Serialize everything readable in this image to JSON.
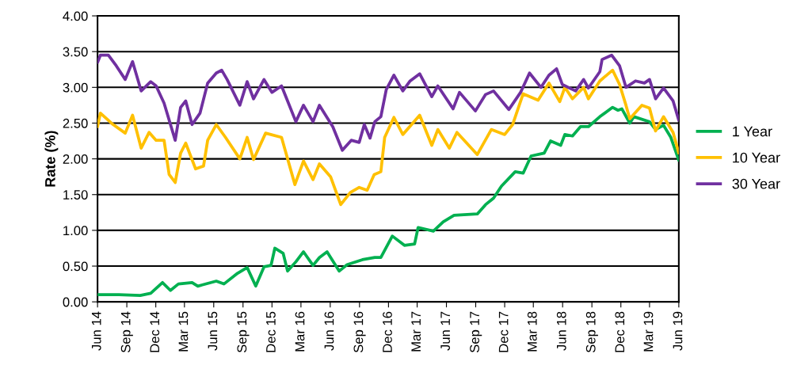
{
  "chart_data": {
    "type": "line",
    "ylabel": "Rate (%)",
    "xlim": [
      "2014-06-01",
      "2019-06-01"
    ],
    "xticks": [
      {
        "value": "2014-06",
        "label": "Jun 14"
      },
      {
        "value": "2014-09",
        "label": "Sep 14"
      },
      {
        "value": "2014-12",
        "label": "Dec 14"
      },
      {
        "value": "2015-03",
        "label": "Mar 15"
      },
      {
        "value": "2015-06",
        "label": "Jun 15"
      },
      {
        "value": "2015-09",
        "label": "Sep 15"
      },
      {
        "value": "2015-12",
        "label": "Dec 15"
      },
      {
        "value": "2016-03",
        "label": "Mar 16"
      },
      {
        "value": "2016-06",
        "label": "Jun 16"
      },
      {
        "value": "2016-09",
        "label": "Sep 16"
      },
      {
        "value": "2016-12",
        "label": "Dec 16"
      },
      {
        "value": "2017-03",
        "label": "Mar 17"
      },
      {
        "value": "2017-06",
        "label": "Jun 17"
      },
      {
        "value": "2017-09",
        "label": "Sep 17"
      },
      {
        "value": "2017-12",
        "label": "Dec 17"
      },
      {
        "value": "2018-03",
        "label": "Mar 18"
      },
      {
        "value": "2018-06",
        "label": "Jun 18"
      },
      {
        "value": "2018-09",
        "label": "Sep 18"
      },
      {
        "value": "2018-12",
        "label": "Dec 18"
      },
      {
        "value": "2019-03",
        "label": "Mar 19"
      },
      {
        "value": "2019-06",
        "label": "Jun 19"
      }
    ],
    "ylim": [
      0,
      4
    ],
    "yticks": [
      {
        "value": 0,
        "label": "0.00"
      },
      {
        "value": 0.5,
        "label": "0.50"
      },
      {
        "value": 1,
        "label": "1.00"
      },
      {
        "value": 1.5,
        "label": "1.50"
      },
      {
        "value": 2,
        "label": "2.00"
      },
      {
        "value": 2.5,
        "label": "2.50"
      },
      {
        "value": 3,
        "label": "3.00"
      },
      {
        "value": 3.5,
        "label": "3.50"
      },
      {
        "value": 4,
        "label": "4.00"
      }
    ],
    "grid": "y",
    "legend": "right",
    "marker": "none",
    "line_style": "solid",
    "series": [
      {
        "name": "1 Year",
        "color": "#00b050",
        "x": [
          "2014-06-01",
          "2014-08-07",
          "2014-10-13",
          "2014-11-15",
          "2014-12-22",
          "2015-01-16",
          "2015-02-10",
          "2015-03-25",
          "2015-04-12",
          "2015-06-09",
          "2015-07-03",
          "2015-08-15",
          "2015-09-14",
          "2015-10-11",
          "2015-11-06",
          "2015-11-28",
          "2015-12-10",
          "2016-01-05",
          "2016-01-19",
          "2016-02-14",
          "2016-03-09",
          "2016-04-08",
          "2016-04-28",
          "2016-05-22",
          "2016-06-29",
          "2016-07-24",
          "2016-09-10",
          "2016-10-19",
          "2016-11-07",
          "2016-12-13",
          "2017-01-20",
          "2017-02-21",
          "2017-03-04",
          "2017-04-21",
          "2017-05-22",
          "2017-06-25",
          "2017-09-06",
          "2017-10-02",
          "2017-10-27",
          "2017-11-21",
          "2018-01-03",
          "2018-01-28",
          "2018-02-22",
          "2018-04-04",
          "2018-04-24",
          "2018-05-26",
          "2018-06-08",
          "2018-07-02",
          "2018-07-27",
          "2018-08-21",
          "2018-09-26",
          "2018-11-05",
          "2018-11-22",
          "2018-12-04",
          "2018-12-29",
          "2019-01-11",
          "2019-03-01",
          "2019-03-20",
          "2019-04-14",
          "2019-05-07",
          "2019-06-01"
        ],
        "values": [
          0.1,
          0.1,
          0.09,
          0.12,
          0.27,
          0.16,
          0.25,
          0.27,
          0.22,
          0.29,
          0.25,
          0.4,
          0.48,
          0.22,
          0.49,
          0.51,
          0.75,
          0.68,
          0.43,
          0.56,
          0.7,
          0.51,
          0.62,
          0.7,
          0.43,
          0.52,
          0.59,
          0.62,
          0.62,
          0.92,
          0.79,
          0.81,
          1.04,
          0.99,
          1.12,
          1.21,
          1.23,
          1.36,
          1.45,
          1.62,
          1.82,
          1.8,
          2.04,
          2.08,
          2.25,
          2.19,
          2.34,
          2.32,
          2.45,
          2.45,
          2.59,
          2.72,
          2.68,
          2.7,
          2.5,
          2.59,
          2.52,
          2.41,
          2.47,
          2.3,
          1.98
        ]
      },
      {
        "name": "10 Year",
        "color": "#ffc000",
        "x": [
          "2014-06-01",
          "2014-06-10",
          "2014-07-20",
          "2014-08-27",
          "2014-09-19",
          "2014-10-16",
          "2014-11-10",
          "2014-12-02",
          "2014-12-27",
          "2015-01-12",
          "2015-01-31",
          "2015-02-17",
          "2015-03-05",
          "2015-04-05",
          "2015-04-30",
          "2015-05-13",
          "2015-06-09",
          "2015-07-08",
          "2015-08-22",
          "2015-09-14",
          "2015-10-04",
          "2015-11-11",
          "2015-12-31",
          "2016-02-11",
          "2016-03-09",
          "2016-04-08",
          "2016-04-28",
          "2016-06-02",
          "2016-07-04",
          "2016-08-03",
          "2016-08-31",
          "2016-09-25",
          "2016-10-17",
          "2016-11-07",
          "2016-11-19",
          "2016-12-18",
          "2017-01-15",
          "2017-03-09",
          "2017-04-16",
          "2017-05-05",
          "2017-06-10",
          "2017-07-04",
          "2017-09-06",
          "2017-10-20",
          "2017-12-01",
          "2017-12-26",
          "2018-01-28",
          "2018-03-16",
          "2018-04-19",
          "2018-05-23",
          "2018-06-08",
          "2018-07-02",
          "2018-08-06",
          "2018-08-21",
          "2018-09-26",
          "2018-11-05",
          "2018-11-27",
          "2018-12-17",
          "2018-12-29",
          "2019-02-05",
          "2019-03-01",
          "2019-03-20",
          "2019-04-14",
          "2019-05-14",
          "2019-06-01"
        ],
        "values": [
          2.45,
          2.64,
          2.48,
          2.36,
          2.61,
          2.15,
          2.37,
          2.26,
          2.26,
          1.78,
          1.67,
          2.08,
          2.22,
          1.86,
          1.9,
          2.26,
          2.48,
          2.3,
          2.0,
          2.3,
          1.99,
          2.36,
          2.3,
          1.64,
          1.97,
          1.71,
          1.93,
          1.75,
          1.36,
          1.53,
          1.6,
          1.56,
          1.78,
          1.82,
          2.3,
          2.58,
          2.34,
          2.61,
          2.19,
          2.41,
          2.15,
          2.37,
          2.06,
          2.41,
          2.34,
          2.48,
          2.91,
          2.82,
          3.06,
          2.8,
          3.0,
          2.84,
          3.0,
          2.84,
          3.09,
          3.24,
          3.04,
          2.75,
          2.56,
          2.75,
          2.71,
          2.39,
          2.59,
          2.37,
          2.08
        ]
      },
      {
        "name": "30 Year",
        "color": "#7030a0",
        "x": [
          "2014-06-01",
          "2014-06-10",
          "2014-07-05",
          "2014-07-30",
          "2014-08-27",
          "2014-09-19",
          "2014-10-16",
          "2014-11-15",
          "2014-12-02",
          "2014-12-27",
          "2015-01-31",
          "2015-02-17",
          "2015-03-05",
          "2015-03-25",
          "2015-04-19",
          "2015-05-13",
          "2015-06-09",
          "2015-06-26",
          "2015-07-13",
          "2015-08-22",
          "2015-09-14",
          "2015-10-04",
          "2015-11-06",
          "2015-12-01",
          "2015-12-31",
          "2016-01-19",
          "2016-02-14",
          "2016-03-09",
          "2016-04-08",
          "2016-04-28",
          "2016-06-09",
          "2016-07-09",
          "2016-08-06",
          "2016-08-31",
          "2016-09-16",
          "2016-10-04",
          "2016-10-19",
          "2016-11-07",
          "2016-11-24",
          "2016-12-18",
          "2017-01-15",
          "2017-02-07",
          "2017-03-09",
          "2017-04-16",
          "2017-05-05",
          "2017-06-22",
          "2017-07-12",
          "2017-08-31",
          "2017-10-02",
          "2017-10-27",
          "2017-12-14",
          "2018-01-20",
          "2018-02-17",
          "2018-03-25",
          "2018-04-19",
          "2018-05-13",
          "2018-05-31",
          "2018-07-12",
          "2018-08-06",
          "2018-08-21",
          "2018-09-26",
          "2018-10-03",
          "2018-11-02",
          "2018-11-27",
          "2018-12-17",
          "2019-01-16",
          "2019-02-13",
          "2019-03-01",
          "2019-03-20",
          "2019-04-14",
          "2019-05-14",
          "2019-06-01"
        ],
        "values": [
          3.35,
          3.45,
          3.45,
          3.3,
          3.11,
          3.36,
          2.95,
          3.08,
          3.02,
          2.78,
          2.26,
          2.72,
          2.81,
          2.48,
          2.64,
          3.06,
          3.2,
          3.24,
          3.11,
          2.75,
          3.08,
          2.84,
          3.11,
          2.93,
          3.02,
          2.81,
          2.52,
          2.75,
          2.52,
          2.75,
          2.45,
          2.12,
          2.26,
          2.23,
          2.48,
          2.29,
          2.52,
          2.59,
          2.97,
          3.17,
          2.95,
          3.09,
          3.19,
          2.87,
          3.02,
          2.7,
          2.93,
          2.67,
          2.9,
          2.95,
          2.69,
          2.93,
          3.2,
          3.0,
          3.17,
          3.26,
          3.04,
          2.95,
          3.11,
          2.99,
          3.22,
          3.39,
          3.45,
          3.3,
          3.0,
          3.09,
          3.06,
          3.11,
          2.84,
          2.99,
          2.81,
          2.54
        ]
      }
    ]
  }
}
